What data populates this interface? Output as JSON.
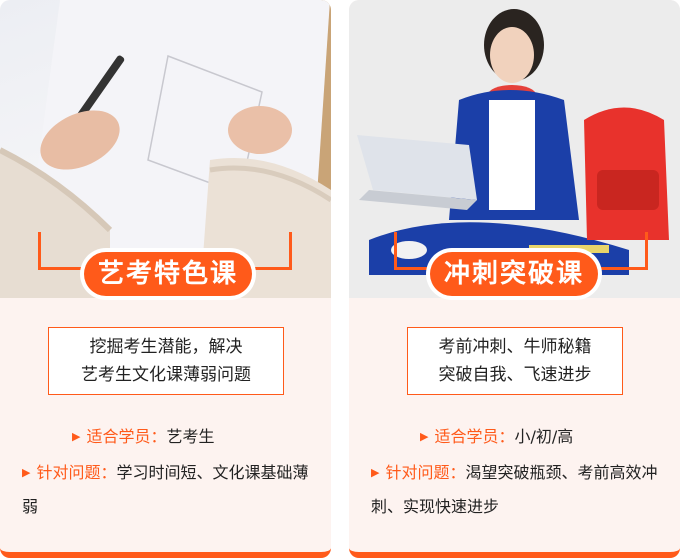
{
  "colors": {
    "accent": "#ff5a1a",
    "card_bg": "#fdf3f0"
  },
  "cards": [
    {
      "title": "艺考特色课",
      "summary_lines": [
        "挖掘考生潜能，解决",
        "艺考生文化课薄弱问题"
      ],
      "suitable_label": "适合学员：",
      "suitable_value": "艺考生",
      "target_label": "针对问题：",
      "target_value": "学习时间短、文化课基础薄弱"
    },
    {
      "title": "冲刺突破课",
      "summary_lines": [
        "考前冲刺、牛师秘籍",
        "突破自我、飞速进步"
      ],
      "suitable_label": "适合学员：",
      "suitable_value": "小/初/高",
      "target_label": "针对问题：",
      "target_value": "渴望突破瓶颈、考前高效冲刺、实现快速进步"
    }
  ]
}
